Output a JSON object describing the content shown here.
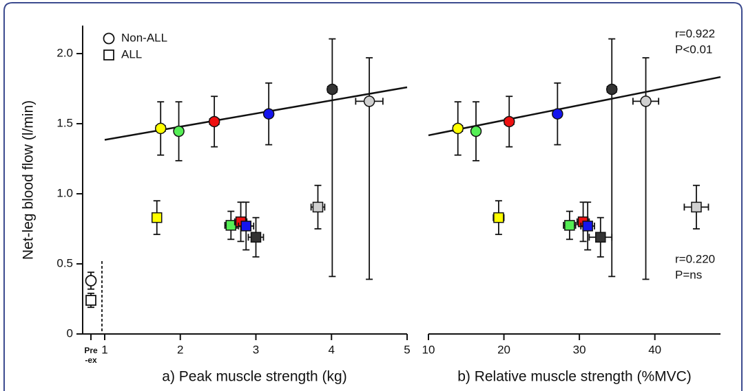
{
  "chart_data": [
    {
      "type": "scatter",
      "xlabel": "a) Peak muscle strength (kg)",
      "ylabel": "Net-leg blood flow (l/min)",
      "xlim": [
        1,
        5
      ],
      "xticks": [
        1,
        2,
        3,
        4,
        5
      ],
      "ylim": [
        0,
        2.2
      ],
      "yticks": [
        0,
        0.5,
        {
          "value": 1,
          "label": "1.0"
        },
        1.5,
        {
          "value": 2,
          "label": "2.0"
        }
      ],
      "legend": "upper left",
      "point_colors": [
        "#ffff00",
        "#55ee55",
        "#ee1111",
        "#1515ee",
        "#333333",
        "#d0d0d0"
      ],
      "series": [
        {
          "name": "Non-ALL",
          "marker": "circle",
          "x": [
            1.74,
            1.98,
            2.45,
            3.17,
            4.01,
            4.5
          ],
          "values": [
            1.466,
            1.446,
            1.515,
            1.57,
            1.745,
            1.66
          ],
          "xerr": [
            0.06,
            0.05,
            0.06,
            0.03,
            0.06,
            0.18
          ],
          "yerr": [
            0.19,
            0.21,
            0.18,
            0.22,
            [
              1.335,
              0.36
            ],
            [
              1.27,
              0.31
            ]
          ]
        },
        {
          "name": "ALL",
          "marker": "square",
          "x": [
            1.69,
            2.67,
            2.8,
            2.87,
            3.0,
            3.82
          ],
          "values": [
            0.83,
            0.775,
            0.8,
            0.77,
            0.69,
            0.905
          ],
          "xerr": [
            0.05,
            0.08,
            0.08,
            0.1,
            0.1,
            0.09
          ],
          "yerr": [
            0.12,
            0.1,
            0.14,
            0.17,
            0.14,
            0.155
          ]
        }
      ],
      "fit": {
        "x": [
          1,
          5
        ],
        "y": [
          1.385,
          1.76
        ]
      },
      "pre_ex": {
        "label": [
          "Pre",
          "-ex"
        ],
        "values": [
          0.38,
          0.24
        ],
        "yerr": [
          0.06,
          0.05
        ]
      }
    },
    {
      "type": "scatter",
      "xlabel": "b) Relative muscle strength (%MVC)",
      "xlim": [
        10,
        48.7
      ],
      "xticks": [
        10,
        20,
        30,
        40
      ],
      "ylim": [
        0,
        2.2
      ],
      "point_colors": [
        "#ffff00",
        "#55ee55",
        "#ee1111",
        "#1515ee",
        "#333333",
        "#d0d0d0"
      ],
      "series": [
        {
          "marker": "circle",
          "x": [
            13.9,
            16.3,
            20.7,
            27.1,
            34.3,
            38.8
          ],
          "values": [
            1.466,
            1.446,
            1.515,
            1.57,
            1.745,
            1.66
          ],
          "xerr": [
            0.6,
            0.5,
            0.6,
            0.3,
            0.6,
            1.7
          ],
          "yerr": [
            0.19,
            0.21,
            0.18,
            0.22,
            [
              1.335,
              0.36
            ],
            [
              1.27,
              0.31
            ]
          ]
        },
        {
          "marker": "square",
          "x": [
            19.3,
            28.7,
            30.5,
            31.1,
            32.8,
            45.5
          ],
          "values": [
            0.83,
            0.775,
            0.8,
            0.77,
            0.69,
            0.905
          ],
          "xerr": [
            0.7,
            0.8,
            0.8,
            0.9,
            1.5,
            1.6
          ],
          "yerr": [
            0.12,
            0.1,
            0.14,
            0.17,
            0.14,
            0.155
          ]
        }
      ],
      "fit": {
        "x": [
          10,
          48.7
        ],
        "y": [
          1.417,
          1.833
        ]
      },
      "annotations": [
        "r=0.922",
        "P<0.01",
        "r=0.220",
        "P=ns"
      ]
    }
  ]
}
